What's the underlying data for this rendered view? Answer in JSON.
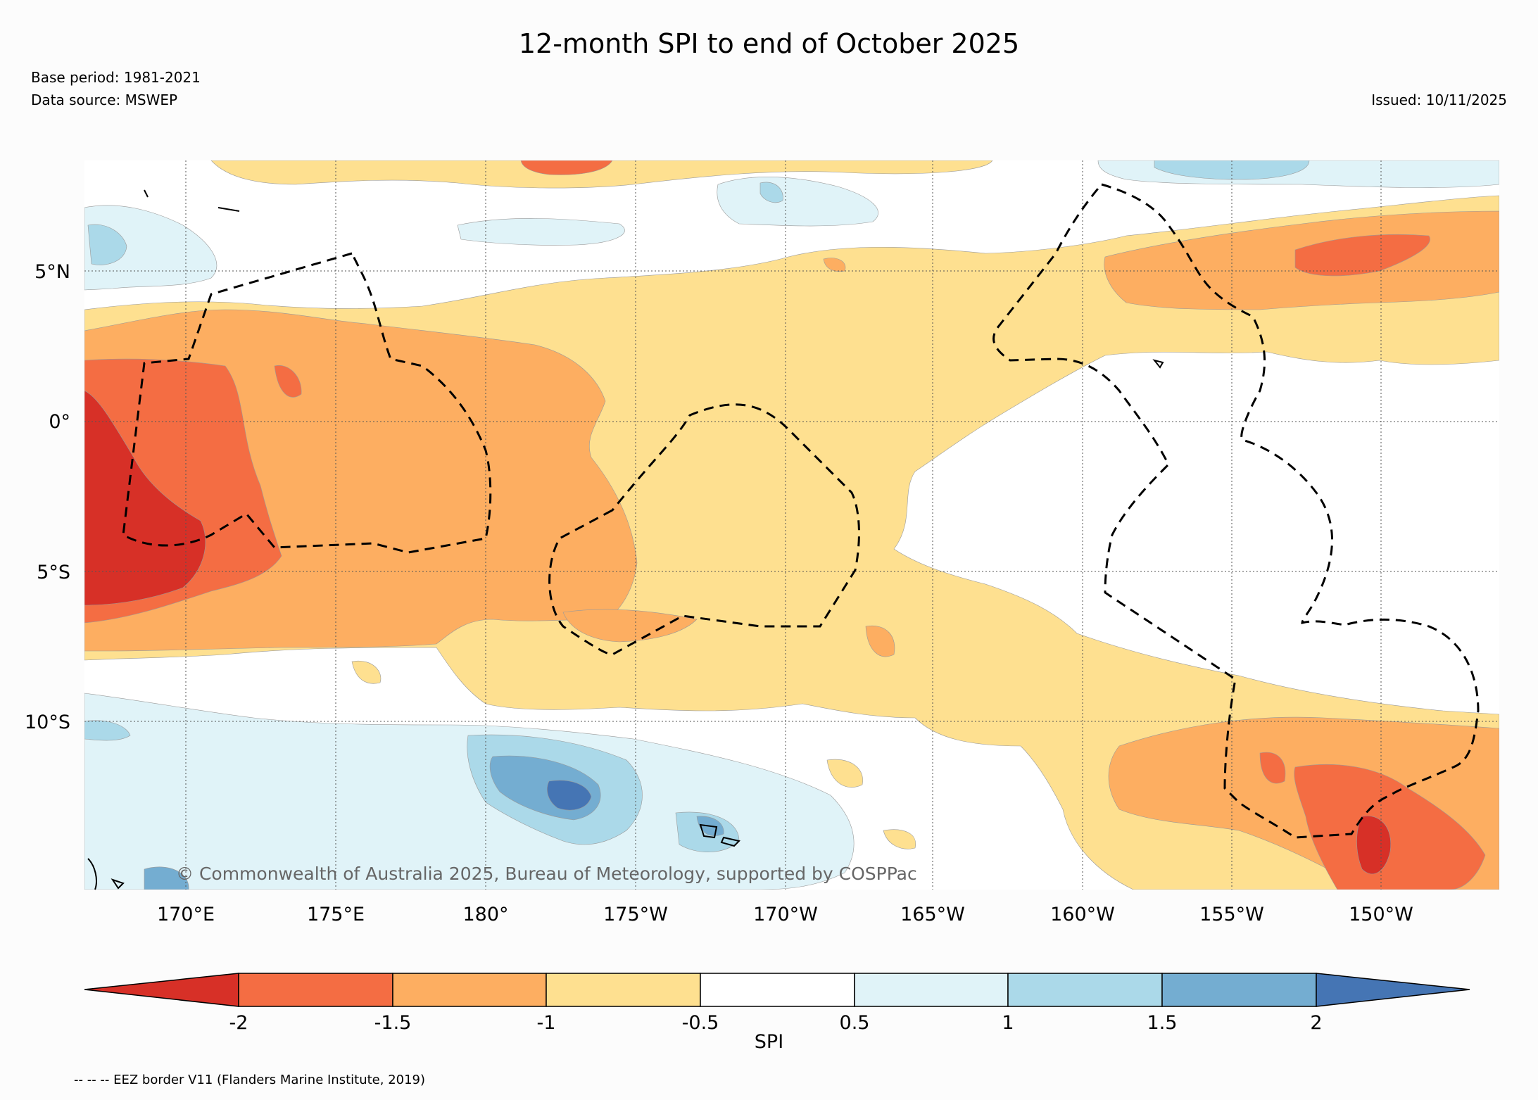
{
  "header": {
    "title": "12-month SPI to end of October 2025",
    "base_period": "Base period: 1981-2021",
    "data_source": "Data source: MSWEP",
    "issued": "Issued: 10/11/2025"
  },
  "map": {
    "copyright": "© Commonwealth of Australia 2025, Bureau of Meteorology, supported by COSPPac",
    "lat_labels": [
      "5°N",
      "0°",
      "5°S",
      "10°S"
    ],
    "lon_labels": [
      "170°E",
      "175°E",
      "180°",
      "175°W",
      "170°W",
      "165°W",
      "160°W",
      "155°W",
      "150°W"
    ]
  },
  "colorbar": {
    "label": "SPI",
    "ticks": [
      "-2",
      "-1.5",
      "-1",
      "-0.5",
      "0.5",
      "1",
      "1.5",
      "2"
    ],
    "colors": {
      "lt_-2": "#d73027",
      "-2_-1.5": "#f46d43",
      "-1.5_-1": "#fdae61",
      "-1_-0.5": "#fee090",
      "-0.5_0.5": "#ffffff",
      "0.5_1": "#e0f3f8",
      "1_1.5": "#abd9e9",
      "1.5_2": "#74add1",
      "gt_2": "#4575b4"
    }
  },
  "footer": {
    "eez_note": "-- -- -- EEZ border V11 (Flanders Marine Institute, 2019)"
  }
}
